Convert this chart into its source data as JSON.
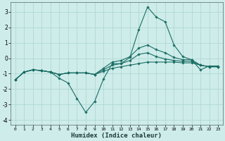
{
  "title": "",
  "xlabel": "Humidex (Indice chaleur)",
  "ylabel": "",
  "background_color": "#ceecea",
  "line_color": "#1a6e64",
  "grid_color": "#b0d8d4",
  "xlim": [
    -0.5,
    23.5
  ],
  "ylim": [
    -4.3,
    3.6
  ],
  "xticks": [
    0,
    1,
    2,
    3,
    4,
    5,
    6,
    7,
    8,
    9,
    10,
    11,
    12,
    13,
    14,
    15,
    16,
    17,
    18,
    19,
    20,
    21,
    22,
    23
  ],
  "yticks": [
    -4,
    -3,
    -2,
    -1,
    0,
    1,
    2,
    3
  ],
  "series": [
    [
      -1.4,
      -0.9,
      -0.75,
      -0.8,
      -0.9,
      -1.3,
      -1.6,
      -2.6,
      -3.5,
      -2.8,
      -1.35,
      -0.35,
      -0.35,
      0.05,
      1.85,
      3.3,
      2.65,
      2.35,
      0.85,
      0.1,
      -0.1,
      -0.75,
      -0.5,
      -0.5
    ],
    [
      -1.4,
      -0.9,
      -0.75,
      -0.8,
      -0.9,
      -1.05,
      -0.95,
      -0.95,
      -0.95,
      -1.05,
      -0.85,
      -0.65,
      -0.55,
      -0.45,
      -0.35,
      -0.25,
      -0.25,
      -0.25,
      -0.25,
      -0.3,
      -0.3,
      -0.45,
      -0.55,
      -0.55
    ],
    [
      -1.4,
      -0.9,
      -0.75,
      -0.8,
      -0.9,
      -1.05,
      -0.95,
      -0.95,
      -0.95,
      -1.05,
      -0.75,
      -0.45,
      -0.35,
      -0.15,
      0.25,
      0.35,
      0.1,
      -0.05,
      -0.15,
      -0.2,
      -0.2,
      -0.45,
      -0.55,
      -0.55
    ],
    [
      -1.4,
      -0.9,
      -0.75,
      -0.8,
      -0.9,
      -1.05,
      -0.95,
      -0.95,
      -0.95,
      -1.05,
      -0.65,
      -0.25,
      -0.15,
      0.1,
      0.65,
      0.85,
      0.55,
      0.35,
      0.05,
      -0.1,
      -0.1,
      -0.45,
      -0.55,
      -0.55
    ]
  ],
  "marker": "D",
  "markersize": 1.8,
  "linewidth": 0.8
}
